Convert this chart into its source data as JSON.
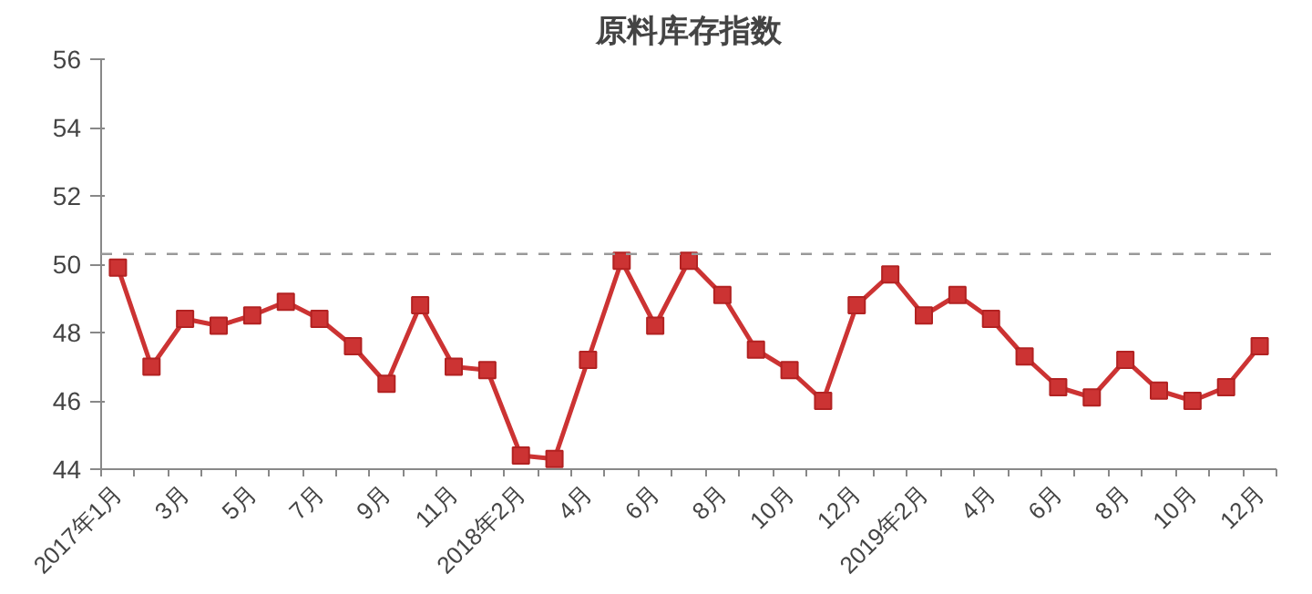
{
  "chart_data": {
    "type": "line",
    "title": "原料库存指数",
    "categories": [
      "2017年1月",
      null,
      "3月",
      null,
      "5月",
      null,
      "7月",
      null,
      "9月",
      null,
      "11月",
      null,
      "2018年2月",
      null,
      "4月",
      null,
      "6月",
      null,
      "8月",
      null,
      "10月",
      null,
      "12月",
      null,
      "2019年2月",
      null,
      "4月",
      null,
      "6月",
      null,
      "8月",
      null,
      "10月",
      null,
      "12月"
    ],
    "series": [
      {
        "color": "#cc3333",
        "values": [
          49.9,
          47.0,
          48.4,
          48.2,
          48.5,
          48.9,
          48.4,
          47.6,
          46.5,
          48.8,
          47.0,
          46.9,
          44.4,
          44.3,
          47.2,
          50.1,
          48.2,
          50.1,
          49.1,
          47.5,
          46.9,
          46.0,
          48.8,
          49.7,
          48.5,
          49.1,
          48.4,
          47.3,
          46.4,
          46.1,
          47.2,
          46.3,
          46.0,
          46.4,
          47.6
        ]
      }
    ],
    "ylim": [
      44,
      56
    ],
    "yticks": [
      44,
      46,
      48,
      50,
      52,
      54,
      56
    ],
    "ref_lines": [
      {
        "axis": "y",
        "value": 50.3,
        "label": null,
        "color": "#999999",
        "line_style": "dashed"
      }
    ],
    "grid": false,
    "marker": "square",
    "line_style": "solid"
  }
}
